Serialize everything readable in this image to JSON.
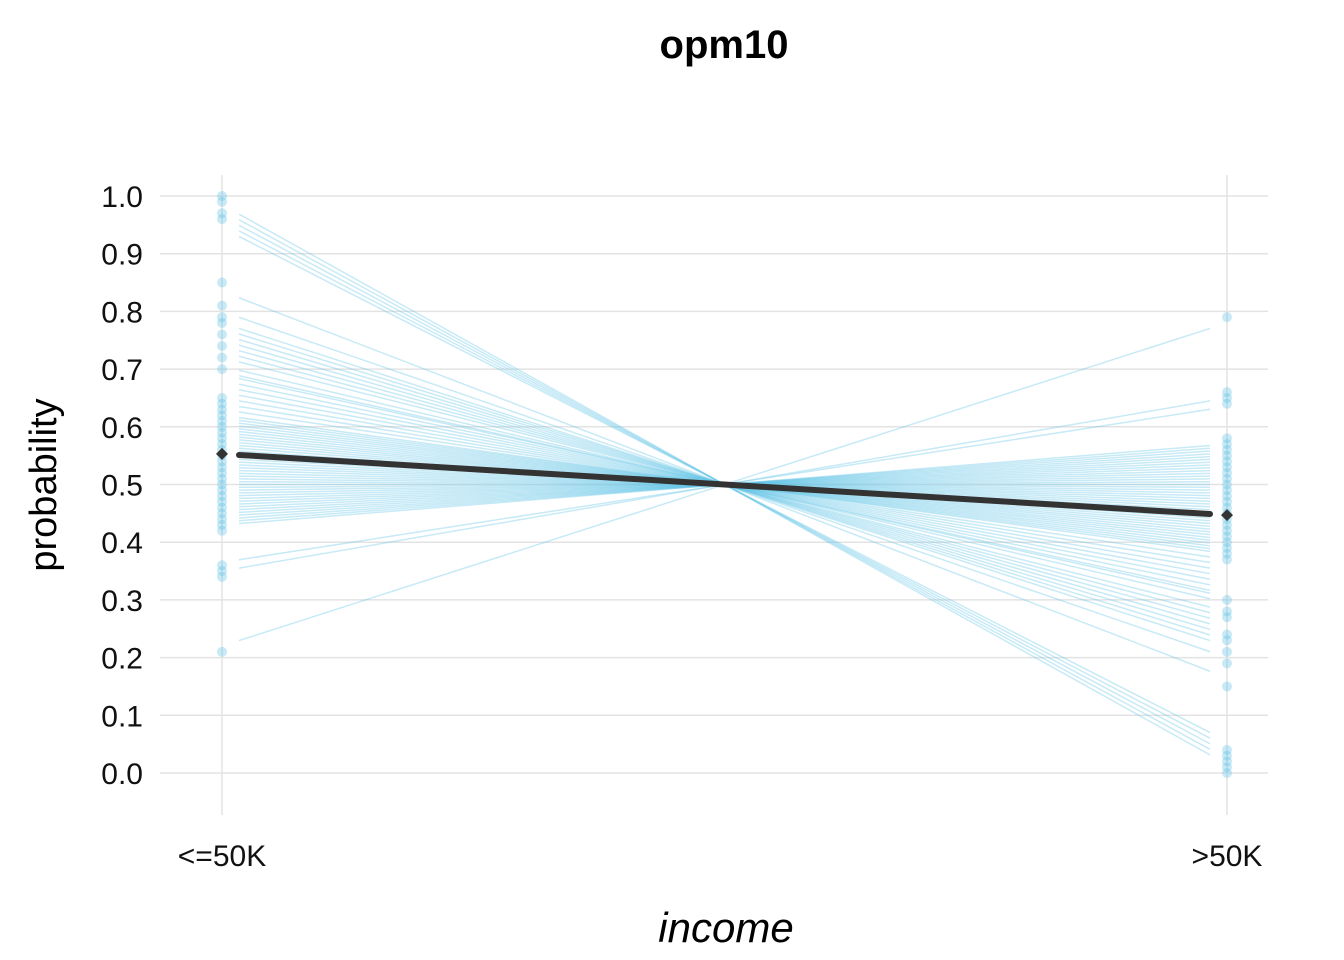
{
  "chart_data": {
    "type": "line",
    "title": "opm10",
    "xlabel": "income",
    "ylabel": "probability",
    "categories": [
      "<=50K",
      ">50K"
    ],
    "ylim": [
      0,
      1
    ],
    "yticks": [
      "0.0",
      "0.1",
      "0.2",
      "0.3",
      "0.4",
      "0.5",
      "0.6",
      "0.7",
      "0.8",
      "0.9",
      "1.0"
    ],
    "grid": true,
    "legend": "none",
    "colors": {
      "draws": "#5ec3e6",
      "mean": "#333333"
    },
    "mean_series": {
      "values": [
        0.553,
        0.447
      ]
    },
    "draw_lines_start_values": [
      0.985,
      0.975,
      0.965,
      0.955,
      0.945,
      0.835,
      0.8,
      0.78,
      0.77,
      0.76,
      0.75,
      0.74,
      0.73,
      0.72,
      0.705,
      0.695,
      0.69,
      0.68,
      0.67,
      0.66,
      0.65,
      0.64,
      0.63,
      0.62,
      0.615,
      0.61,
      0.605,
      0.6,
      0.595,
      0.59,
      0.585,
      0.58,
      0.575,
      0.57,
      0.565,
      0.56,
      0.555,
      0.55,
      0.545,
      0.54,
      0.535,
      0.53,
      0.525,
      0.52,
      0.515,
      0.51,
      0.505,
      0.5,
      0.495,
      0.49,
      0.485,
      0.48,
      0.475,
      0.47,
      0.465,
      0.46,
      0.455,
      0.45,
      0.445,
      0.44,
      0.435,
      0.43,
      0.365,
      0.35,
      0.22
    ],
    "points_left": [
      1.0,
      0.99,
      0.97,
      0.96,
      0.85,
      0.81,
      0.79,
      0.78,
      0.76,
      0.74,
      0.72,
      0.7,
      0.65,
      0.64,
      0.63,
      0.62,
      0.61,
      0.6,
      0.59,
      0.58,
      0.57,
      0.56,
      0.55,
      0.54,
      0.53,
      0.52,
      0.51,
      0.5,
      0.49,
      0.48,
      0.47,
      0.46,
      0.45,
      0.44,
      0.43,
      0.42,
      0.36,
      0.35,
      0.34,
      0.21
    ],
    "points_right": [
      0.79,
      0.66,
      0.65,
      0.64,
      0.58,
      0.57,
      0.56,
      0.55,
      0.54,
      0.53,
      0.52,
      0.51,
      0.5,
      0.49,
      0.48,
      0.47,
      0.46,
      0.45,
      0.44,
      0.43,
      0.42,
      0.41,
      0.4,
      0.39,
      0.38,
      0.37,
      0.3,
      0.28,
      0.27,
      0.24,
      0.23,
      0.21,
      0.19,
      0.15,
      0.04,
      0.03,
      0.02,
      0.01,
      0.0
    ]
  }
}
